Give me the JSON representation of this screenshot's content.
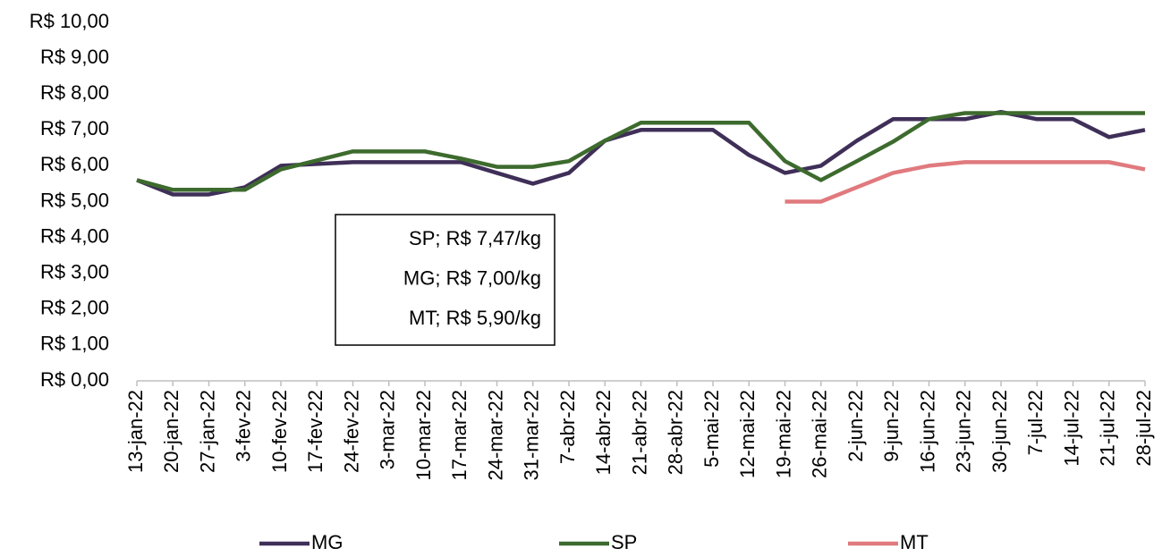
{
  "chart_data": {
    "type": "line",
    "categories": [
      "13-jan-22",
      "20-jan-22",
      "27-jan-22",
      "3-fev-22",
      "10-fev-22",
      "17-fev-22",
      "24-fev-22",
      "3-mar-22",
      "10-mar-22",
      "17-mar-22",
      "24-mar-22",
      "31-mar-22",
      "7-abr-22",
      "14-abr-22",
      "21-abr-22",
      "28-abr-22",
      "5-mai-22",
      "12-mai-22",
      "19-mai-22",
      "26-mai-22",
      "2-jun-22",
      "9-jun-22",
      "16-jun-22",
      "23-jun-22",
      "30-jun-22",
      "7-jul-22",
      "14-jul-22",
      "21-jul-22",
      "28-jul-22"
    ],
    "series": [
      {
        "name": "MG",
        "color": "#3f2f58",
        "values": [
          5.6,
          5.2,
          5.2,
          5.4,
          6.0,
          6.05,
          6.1,
          6.1,
          6.1,
          6.1,
          5.8,
          5.5,
          5.8,
          6.7,
          7.0,
          7.0,
          7.0,
          6.3,
          5.8,
          6.0,
          6.7,
          7.3,
          7.3,
          7.3,
          7.5,
          7.3,
          7.3,
          6.8,
          7.0
        ]
      },
      {
        "name": "SP",
        "color": "#3d6b2e",
        "values": [
          5.6,
          5.33,
          5.33,
          5.33,
          5.9,
          6.15,
          6.4,
          6.4,
          6.4,
          6.2,
          5.97,
          5.97,
          6.13,
          6.7,
          7.2,
          7.2,
          7.2,
          7.2,
          6.13,
          5.6,
          6.13,
          6.67,
          7.3,
          7.47,
          7.47,
          7.47,
          7.47,
          7.47,
          7.47
        ]
      },
      {
        "name": "MT",
        "color": "#e07a7e",
        "values": [
          null,
          null,
          null,
          null,
          null,
          null,
          null,
          null,
          null,
          null,
          null,
          null,
          null,
          null,
          null,
          null,
          null,
          null,
          5.0,
          5.0,
          5.4,
          5.8,
          6.0,
          6.1,
          6.1,
          6.1,
          6.1,
          6.1,
          5.9
        ]
      }
    ],
    "ylim": [
      0,
      10
    ],
    "yticks": [
      {
        "value": 0,
        "label": "R$ 0,00"
      },
      {
        "value": 1,
        "label": "R$ 1,00"
      },
      {
        "value": 2,
        "label": "R$ 2,00"
      },
      {
        "value": 3,
        "label": "R$ 3,00"
      },
      {
        "value": 4,
        "label": "R$ 4,00"
      },
      {
        "value": 5,
        "label": "R$ 5,00"
      },
      {
        "value": 6,
        "label": "R$ 6,00"
      },
      {
        "value": 7,
        "label": "R$ 7,00"
      },
      {
        "value": 8,
        "label": "R$ 8,00"
      },
      {
        "value": 9,
        "label": "R$ 9,00"
      },
      {
        "value": 10,
        "label": "R$ 10,00"
      }
    ],
    "annotations": [
      "SP; R$ 7,47/kg",
      "MG; R$ 7,00/kg",
      "MT; R$ 5,90/kg"
    ],
    "legend": "bottom"
  }
}
